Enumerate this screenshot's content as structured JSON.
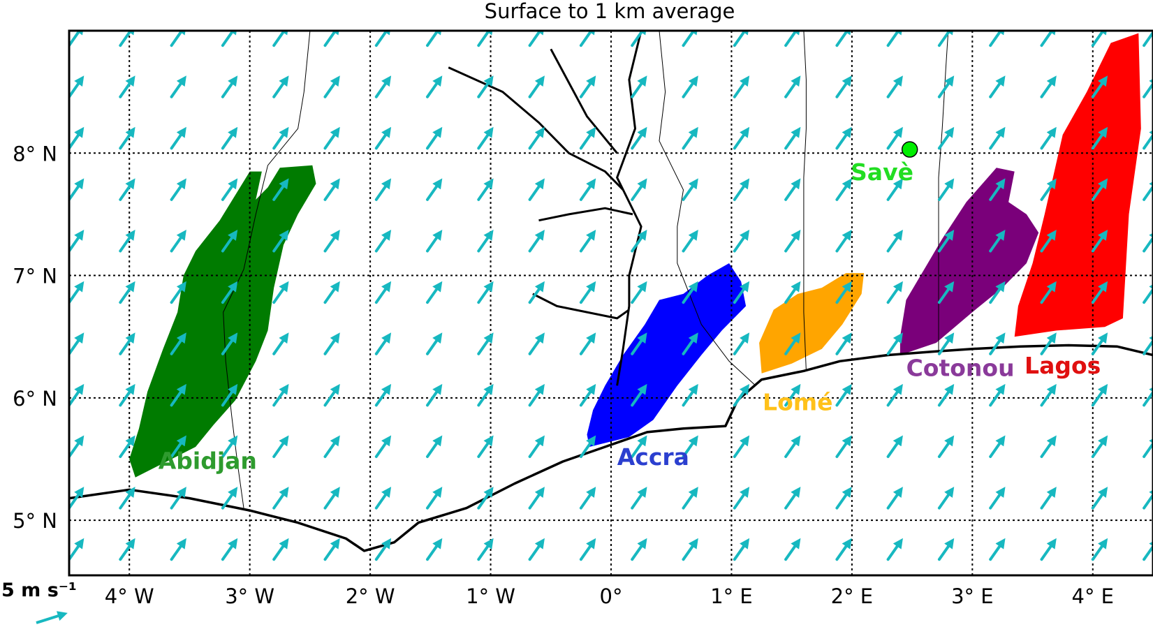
{
  "title": "Surface to 1 km average",
  "map": {
    "lon_range": [
      -4.5,
      4.5
    ],
    "lat_range": [
      4.55,
      9.0
    ],
    "lon_ticks": [
      {
        "value": -4,
        "label": "4° W"
      },
      {
        "value": -3,
        "label": "3° W"
      },
      {
        "value": -2,
        "label": "2° W"
      },
      {
        "value": -1,
        "label": "1° W"
      },
      {
        "value": 0,
        "label": "0°"
      },
      {
        "value": 1,
        "label": "1° E"
      },
      {
        "value": 2,
        "label": "2° E"
      },
      {
        "value": 3,
        "label": "3° E"
      },
      {
        "value": 4,
        "label": "4° E"
      }
    ],
    "lat_ticks": [
      {
        "value": 5,
        "label": "5° N"
      },
      {
        "value": 6,
        "label": "6° N"
      },
      {
        "value": 7,
        "label": "7° N"
      },
      {
        "value": 8,
        "label": "8° N"
      }
    ],
    "grid": true
  },
  "wind": {
    "color": "#17b8c0",
    "direction_deg_from_north": 35,
    "lon_start": -4.45,
    "lon_step": 0.425,
    "lat_start": 4.75,
    "lat_step": 0.42
  },
  "scale": {
    "label": "5 m s⁻¹",
    "color": "#17b8c0"
  },
  "regions": [
    {
      "name": "Abidjan",
      "color": "#007b00",
      "label_color": "#2e9b2e",
      "polygon": [
        [
          -3.95,
          5.35
        ],
        [
          -3.75,
          5.45
        ],
        [
          -3.45,
          5.6
        ],
        [
          -3.3,
          5.78
        ],
        [
          -3.12,
          5.98
        ],
        [
          -2.95,
          6.3
        ],
        [
          -2.85,
          6.55
        ],
        [
          -2.8,
          6.9
        ],
        [
          -2.72,
          7.25
        ],
        [
          -2.6,
          7.5
        ],
        [
          -2.45,
          7.75
        ],
        [
          -2.48,
          7.9
        ],
        [
          -2.75,
          7.88
        ],
        [
          -2.85,
          7.72
        ],
        [
          -2.95,
          7.62
        ],
        [
          -2.9,
          7.85
        ],
        [
          -3.0,
          7.85
        ],
        [
          -3.25,
          7.45
        ],
        [
          -3.45,
          7.2
        ],
        [
          -3.55,
          7.0
        ],
        [
          -3.6,
          6.7
        ],
        [
          -3.72,
          6.4
        ],
        [
          -3.85,
          6.05
        ],
        [
          -3.92,
          5.75
        ],
        [
          -4.0,
          5.5
        ]
      ],
      "label_lon": -3.35,
      "label_lat": 5.42
    },
    {
      "name": "Accra",
      "color": "#0000ff",
      "label_color": "#2b3fcf",
      "polygon": [
        [
          -0.18,
          5.6
        ],
        [
          0.15,
          5.68
        ],
        [
          0.35,
          5.82
        ],
        [
          0.55,
          6.1
        ],
        [
          0.75,
          6.35
        ],
        [
          0.92,
          6.55
        ],
        [
          1.12,
          6.75
        ],
        [
          1.08,
          6.95
        ],
        [
          0.98,
          7.1
        ],
        [
          0.8,
          7.0
        ],
        [
          0.6,
          6.85
        ],
        [
          0.4,
          6.8
        ],
        [
          0.28,
          6.6
        ],
        [
          0.1,
          6.35
        ],
        [
          -0.05,
          6.1
        ],
        [
          -0.15,
          5.9
        ],
        [
          -0.2,
          5.7
        ]
      ],
      "label_lon": 0.35,
      "label_lat": 5.45
    },
    {
      "name": "Lomé",
      "color": "#ffa500",
      "label_color": "#ffc11a",
      "polygon": [
        [
          1.25,
          6.2
        ],
        [
          1.5,
          6.28
        ],
        [
          1.75,
          6.4
        ],
        [
          1.92,
          6.6
        ],
        [
          2.08,
          6.85
        ],
        [
          2.1,
          7.02
        ],
        [
          1.95,
          7.02
        ],
        [
          1.75,
          6.9
        ],
        [
          1.55,
          6.85
        ],
        [
          1.35,
          6.72
        ],
        [
          1.23,
          6.45
        ]
      ],
      "label_lon": 1.55,
      "label_lat": 5.9
    },
    {
      "name": "Cotonou",
      "color": "#7a007a",
      "label_color": "#8a3a9a",
      "polygon": [
        [
          2.4,
          6.35
        ],
        [
          2.7,
          6.45
        ],
        [
          3.0,
          6.7
        ],
        [
          3.25,
          6.9
        ],
        [
          3.45,
          7.1
        ],
        [
          3.55,
          7.35
        ],
        [
          3.45,
          7.5
        ],
        [
          3.3,
          7.6
        ],
        [
          3.35,
          7.85
        ],
        [
          3.2,
          7.88
        ],
        [
          2.95,
          7.6
        ],
        [
          2.75,
          7.3
        ],
        [
          2.6,
          7.05
        ],
        [
          2.45,
          6.8
        ],
        [
          2.4,
          6.5
        ]
      ],
      "label_lon": 2.9,
      "label_lat": 6.18
    },
    {
      "name": "Lagos",
      "color": "#ff0000",
      "label_color": "#e01010",
      "polygon": [
        [
          3.35,
          6.5
        ],
        [
          3.7,
          6.55
        ],
        [
          4.1,
          6.58
        ],
        [
          4.25,
          6.65
        ],
        [
          4.3,
          7.5
        ],
        [
          4.4,
          8.2
        ],
        [
          4.38,
          8.98
        ],
        [
          4.15,
          8.9
        ],
        [
          3.95,
          8.5
        ],
        [
          3.75,
          8.15
        ],
        [
          3.6,
          7.5
        ],
        [
          3.5,
          7.1
        ],
        [
          3.38,
          6.75
        ]
      ],
      "label_lon": 3.75,
      "label_lat": 6.2
    }
  ],
  "points": [
    {
      "name": "Savè",
      "lon": 2.48,
      "lat": 8.03,
      "color": "#00ee00",
      "label_color": "#22dd22",
      "label_lon": 2.25,
      "label_lat": 7.78
    }
  ],
  "coastline": [
    [
      -4.5,
      5.18
    ],
    [
      -4.0,
      5.25
    ],
    [
      -3.5,
      5.18
    ],
    [
      -3.0,
      5.08
    ],
    [
      -2.6,
      4.98
    ],
    [
      -2.2,
      4.85
    ],
    [
      -2.05,
      4.75
    ],
    [
      -1.8,
      4.82
    ],
    [
      -1.6,
      4.98
    ],
    [
      -1.2,
      5.1
    ],
    [
      -0.8,
      5.3
    ],
    [
      -0.4,
      5.48
    ],
    [
      -0.05,
      5.6
    ],
    [
      0.3,
      5.72
    ],
    [
      0.6,
      5.75
    ],
    [
      0.95,
      5.77
    ],
    [
      1.05,
      5.98
    ],
    [
      1.25,
      6.15
    ],
    [
      1.6,
      6.22
    ],
    [
      1.9,
      6.3
    ],
    [
      2.3,
      6.35
    ],
    [
      2.7,
      6.38
    ],
    [
      3.0,
      6.4
    ],
    [
      3.4,
      6.42
    ],
    [
      3.8,
      6.43
    ],
    [
      4.2,
      6.42
    ],
    [
      4.5,
      6.35
    ]
  ],
  "borders": [
    [
      [
        -3.05,
        5.1
      ],
      [
        -3.1,
        5.45
      ],
      [
        -3.15,
        5.85
      ],
      [
        -3.2,
        6.3
      ],
      [
        -3.22,
        6.7
      ],
      [
        -3.05,
        7.05
      ],
      [
        -2.95,
        7.5
      ],
      [
        -2.85,
        7.9
      ],
      [
        -2.6,
        8.2
      ],
      [
        -2.55,
        8.5
      ],
      [
        -2.5,
        9.0
      ]
    ],
    [
      [
        1.2,
        6.1
      ],
      [
        0.98,
        6.3
      ],
      [
        0.75,
        6.6
      ],
      [
        0.55,
        7.1
      ],
      [
        0.55,
        7.4
      ],
      [
        0.6,
        7.7
      ],
      [
        0.4,
        8.1
      ],
      [
        0.45,
        8.5
      ],
      [
        0.4,
        9.0
      ]
    ],
    [
      [
        1.62,
        6.22
      ],
      [
        1.6,
        6.7
      ],
      [
        1.6,
        7.2
      ],
      [
        1.6,
        7.8
      ],
      [
        1.62,
        8.2
      ],
      [
        1.62,
        8.6
      ],
      [
        1.6,
        9.0
      ]
    ],
    [
      [
        2.72,
        6.38
      ],
      [
        2.72,
        6.8
      ],
      [
        2.72,
        7.2
      ],
      [
        2.72,
        7.8
      ],
      [
        2.75,
        8.2
      ],
      [
        2.78,
        8.7
      ],
      [
        2.8,
        9.0
      ]
    ]
  ],
  "rivers": [
    [
      [
        0.25,
        9.0
      ],
      [
        0.15,
        8.6
      ],
      [
        0.2,
        8.2
      ],
      [
        0.05,
        7.8
      ],
      [
        0.25,
        7.4
      ],
      [
        0.15,
        7.0
      ],
      [
        0.15,
        6.75
      ],
      [
        0.1,
        6.4
      ],
      [
        0.05,
        6.1
      ]
    ],
    [
      [
        -1.35,
        8.7
      ],
      [
        -0.9,
        8.5
      ],
      [
        -0.6,
        8.25
      ],
      [
        -0.35,
        8.0
      ],
      [
        -0.05,
        7.85
      ],
      [
        0.1,
        7.7
      ]
    ],
    [
      [
        -0.6,
        7.45
      ],
      [
        -0.35,
        7.5
      ],
      [
        -0.05,
        7.55
      ],
      [
        0.18,
        7.5
      ]
    ],
    [
      [
        -0.65,
        6.85
      ],
      [
        -0.45,
        6.75
      ],
      [
        -0.2,
        6.7
      ],
      [
        0.05,
        6.65
      ],
      [
        0.15,
        6.72
      ]
    ],
    [
      [
        -0.5,
        8.85
      ],
      [
        -0.2,
        8.3
      ],
      [
        0.05,
        8.0
      ]
    ]
  ]
}
